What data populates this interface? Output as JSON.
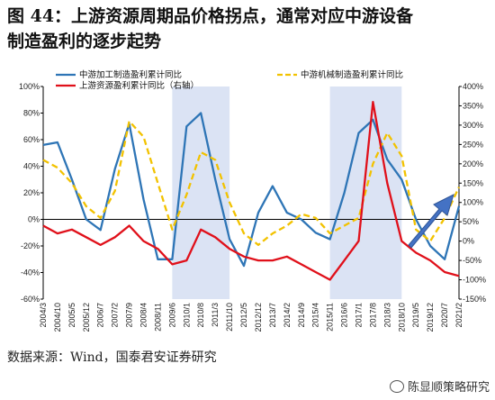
{
  "title_line1": "图 44：上游资源周期品价格拐点，通常对应中游设备",
  "title_line2": "制造盈利的逐步起势",
  "source": "数据来源：Wind，国泰君安证券研究",
  "watermark": "陈显顺策略研究",
  "chart_data": {
    "type": "line",
    "x": [
      "2004/3",
      "2004/10",
      "2005/5",
      "2005/12",
      "2006/7",
      "2007/2",
      "2007/9",
      "2008/4",
      "2008/11",
      "2009/6",
      "2010/1",
      "2010/8",
      "2011/3",
      "2011/10",
      "2012/5",
      "2012/12",
      "2013/7",
      "2014/2",
      "2014/9",
      "2015/4",
      "2015/11",
      "2016/6",
      "2017/1",
      "2017/8",
      "2018/3",
      "2018/10",
      "2019/5",
      "2019/12",
      "2020/7",
      "2021/2"
    ],
    "left_axis": {
      "ticks": [
        "100%",
        "80%",
        "60%",
        "40%",
        "20%",
        "0%",
        "-20%",
        "-40%",
        "-60%"
      ],
      "ylim": [
        -60,
        100
      ]
    },
    "right_axis": {
      "ticks": [
        "400%",
        "350%",
        "300%",
        "250%",
        "200%",
        "150%",
        "100%",
        "50%",
        "0%",
        "-50%",
        "-100%",
        "-150%"
      ],
      "ylim": [
        -150,
        400
      ]
    },
    "shaded_periods": [
      [
        "2009/6",
        "2011/10"
      ],
      [
        "2015/11",
        "2018/10"
      ]
    ],
    "series": [
      {
        "name": "中游加工制造盈利累计同比",
        "axis": "left",
        "color": "#2e75b6",
        "style": "solid",
        "values": [
          56,
          58,
          30,
          0,
          -8,
          38,
          72,
          15,
          -30,
          -30,
          70,
          80,
          30,
          -15,
          -35,
          5,
          25,
          5,
          0,
          -10,
          -15,
          20,
          65,
          75,
          45,
          30,
          0,
          -20,
          -30,
          10
        ]
      },
      {
        "name": "中游机械制造盈利累计同比",
        "axis": "right",
        "color": "#f2c200",
        "style": "dashed",
        "values": [
          210,
          190,
          150,
          90,
          60,
          130,
          310,
          270,
          150,
          30,
          120,
          230,
          210,
          100,
          20,
          -10,
          20,
          40,
          70,
          60,
          20,
          40,
          60,
          200,
          280,
          220,
          30,
          0,
          60,
          140
        ]
      },
      {
        "name": "上游资源盈利累计同比（右轴）",
        "axis": "right",
        "color": "#e0101a",
        "style": "solid",
        "values": [
          40,
          20,
          30,
          10,
          -10,
          10,
          40,
          0,
          -20,
          -60,
          -50,
          30,
          10,
          -20,
          -40,
          -50,
          -50,
          -40,
          -60,
          -80,
          -100,
          -50,
          0,
          360,
          150,
          0,
          -30,
          -50,
          -80,
          -90
        ]
      }
    ],
    "annotation": "arrow-up"
  }
}
